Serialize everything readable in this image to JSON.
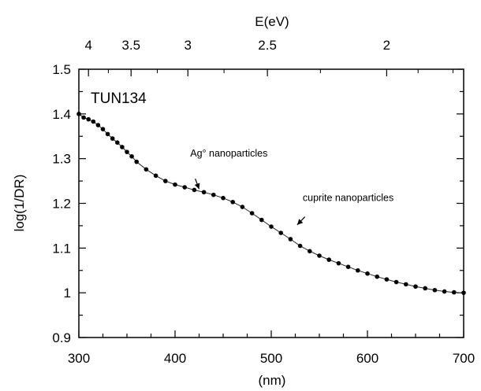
{
  "chart_data": {
    "type": "line",
    "panel_label": "TUN134",
    "xlabel": "(nm)",
    "ylabel": "log(1/DR)",
    "top_axis_label": "E(eV)",
    "xlim": [
      300,
      700
    ],
    "ylim": [
      0.9,
      1.5
    ],
    "x_ticks": [
      300,
      400,
      500,
      600,
      700
    ],
    "x_tick_labels": [
      "300",
      "400",
      "500",
      "600",
      "700"
    ],
    "y_ticks": [
      0.9,
      1.0,
      1.1,
      1.2,
      1.3,
      1.4,
      1.5
    ],
    "y_tick_labels": [
      "0.9",
      "1",
      "1.1",
      "1.2",
      "1.3",
      "1.4",
      "1.5"
    ],
    "top_ticks_eV": [
      4,
      3.5,
      3,
      2.5,
      2
    ],
    "top_tick_labels": [
      "4",
      "3.5",
      "3",
      "2.5",
      "2"
    ],
    "grid": false,
    "series": [
      {
        "x": [
          300,
          305,
          310,
          315,
          320,
          325,
          330,
          335,
          340,
          345,
          350,
          355,
          360,
          370,
          380,
          390,
          400,
          410,
          420,
          430,
          440,
          450,
          460,
          470,
          480,
          490,
          500,
          510,
          520,
          530,
          540,
          550,
          560,
          570,
          580,
          590,
          600,
          610,
          620,
          630,
          640,
          650,
          660,
          670,
          680,
          690,
          700
        ],
        "y": [
          1.4,
          1.392,
          1.388,
          1.383,
          1.375,
          1.366,
          1.355,
          1.345,
          1.336,
          1.326,
          1.315,
          1.305,
          1.293,
          1.276,
          1.262,
          1.25,
          1.242,
          1.236,
          1.23,
          1.225,
          1.219,
          1.212,
          1.203,
          1.192,
          1.178,
          1.163,
          1.148,
          1.134,
          1.12,
          1.105,
          1.093,
          1.083,
          1.074,
          1.066,
          1.058,
          1.05,
          1.043,
          1.036,
          1.03,
          1.024,
          1.019,
          1.014,
          1.01,
          1.006,
          1.003,
          1.001,
          1.0
        ]
      }
    ],
    "annotations": [
      {
        "text": "Ag° nanoparticles",
        "x": 456,
        "y": 1.305,
        "arrow_to": [
          425,
          1.232
        ]
      },
      {
        "text": "cuprite nanoparticles",
        "x": 580,
        "y": 1.205,
        "arrow_to": [
          527,
          1.152
        ]
      }
    ]
  }
}
